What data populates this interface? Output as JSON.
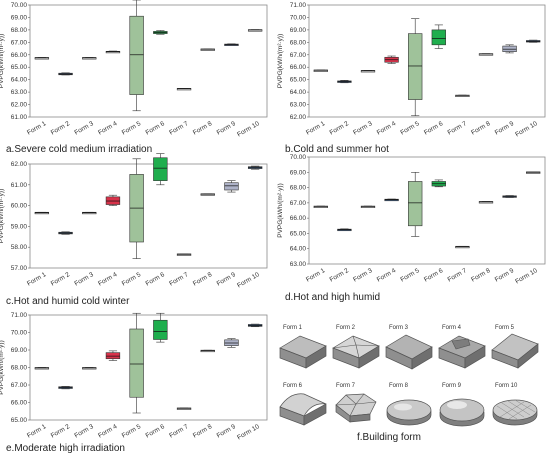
{
  "chart_data": [
    {
      "type": "box",
      "caption": "a.Severe cold medium irradiation",
      "ylabel": "PVPG(kWh/(m²·y))",
      "categories": [
        "Form 1",
        "Form 2",
        "Form 3",
        "Form 4",
        "Form 5",
        "Form 6",
        "Form 7",
        "Form 8",
        "Form 9",
        "Form 10"
      ],
      "ylim": [
        61.0,
        70.0
      ],
      "yticks": [
        "61.00",
        "62.00",
        "63.00",
        "64.00",
        "65.00",
        "66.00",
        "67.00",
        "68.00",
        "69.00",
        "70.00"
      ],
      "boxes": [
        {
          "min": 65.74,
          "q1": 65.74,
          "median": 65.76,
          "q3": 65.78,
          "max": 65.78,
          "color": "#cfcfcf"
        },
        {
          "min": 64.38,
          "q1": 64.4,
          "median": 64.45,
          "q3": 64.52,
          "max": 64.55,
          "color": "#3e5f86"
        },
        {
          "min": 65.74,
          "q1": 65.74,
          "median": 65.76,
          "q3": 65.78,
          "max": 65.78,
          "color": "#cfcfcf"
        },
        {
          "min": 66.22,
          "q1": 66.22,
          "median": 66.25,
          "q3": 66.28,
          "max": 66.3,
          "color": "#cfcfcf"
        },
        {
          "min": 61.5,
          "q1": 62.8,
          "median": 66.0,
          "q3": 69.1,
          "max": 70.4,
          "color": "#9fc29a"
        },
        {
          "min": 67.65,
          "q1": 67.7,
          "median": 67.8,
          "q3": 67.88,
          "max": 67.95,
          "color": "#1fae4e"
        },
        {
          "min": 63.26,
          "q1": 63.26,
          "median": 63.28,
          "q3": 63.3,
          "max": 63.3,
          "color": "#cfcfcf"
        },
        {
          "min": 66.43,
          "q1": 66.43,
          "median": 66.45,
          "q3": 66.47,
          "max": 66.47,
          "color": "#cfcfcf"
        },
        {
          "min": 66.78,
          "q1": 66.8,
          "median": 66.82,
          "q3": 66.86,
          "max": 66.88,
          "color": "#5d6f8f"
        },
        {
          "min": 67.97,
          "q1": 67.97,
          "median": 68.0,
          "q3": 68.02,
          "max": 68.02,
          "color": "#cfcfcf"
        }
      ]
    },
    {
      "type": "box",
      "caption": "b.Cold and summer hot",
      "ylabel": "PVPG(kWh/(m²·y))",
      "categories": [
        "Form 1",
        "Form 2",
        "Form 3",
        "Form 4",
        "Form 5",
        "Form 6",
        "Form 7",
        "Form 8",
        "Form 9",
        "Form 10"
      ],
      "ylim": [
        62.0,
        71.0
      ],
      "yticks": [
        "62.00",
        "63.00",
        "64.00",
        "65.00",
        "66.00",
        "67.00",
        "68.00",
        "69.00",
        "70.00",
        "71.00"
      ],
      "boxes": [
        {
          "min": 65.74,
          "q1": 65.74,
          "median": 65.76,
          "q3": 65.78,
          "max": 65.78,
          "color": "#cfcfcf"
        },
        {
          "min": 64.75,
          "q1": 64.78,
          "median": 64.85,
          "q3": 64.9,
          "max": 64.95,
          "color": "#3e5f86"
        },
        {
          "min": 65.7,
          "q1": 65.7,
          "median": 65.72,
          "q3": 65.74,
          "max": 65.74,
          "color": "#cfcfcf"
        },
        {
          "min": 66.3,
          "q1": 66.4,
          "median": 66.6,
          "q3": 66.8,
          "max": 66.9,
          "color": "#d8324a"
        },
        {
          "min": 62.1,
          "q1": 63.4,
          "median": 66.1,
          "q3": 68.7,
          "max": 69.9,
          "color": "#9fc29a"
        },
        {
          "min": 67.5,
          "q1": 67.8,
          "median": 68.3,
          "q3": 69.0,
          "max": 69.4,
          "color": "#1fae4e"
        },
        {
          "min": 63.72,
          "q1": 63.72,
          "median": 63.74,
          "q3": 63.76,
          "max": 63.76,
          "color": "#cfcfcf"
        },
        {
          "min": 67.05,
          "q1": 67.05,
          "median": 67.07,
          "q3": 67.09,
          "max": 67.09,
          "color": "#cfcfcf"
        },
        {
          "min": 67.15,
          "q1": 67.25,
          "median": 67.45,
          "q3": 67.7,
          "max": 67.8,
          "color": "#aeb3c8"
        },
        {
          "min": 68.0,
          "q1": 68.03,
          "median": 68.08,
          "q3": 68.15,
          "max": 68.18,
          "color": "#3e5f86"
        }
      ]
    },
    {
      "type": "box",
      "caption": "c.Hot and humid cold winter",
      "ylabel": "PVPG(kWh/(m²·y))",
      "categories": [
        "Form 1",
        "Form 2",
        "Form 3",
        "Form 4",
        "Form 5",
        "Form 6",
        "Form 7",
        "Form 8",
        "Form 9",
        "Form 10"
      ],
      "ylim": [
        57.0,
        62.0
      ],
      "yticks": [
        "57.00",
        "58.00",
        "59.00",
        "60.00",
        "61.00",
        "62.00"
      ],
      "boxes": [
        {
          "min": 59.64,
          "q1": 59.64,
          "median": 59.66,
          "q3": 59.68,
          "max": 59.68,
          "color": "#cfcfcf"
        },
        {
          "min": 58.62,
          "q1": 58.64,
          "median": 58.68,
          "q3": 58.72,
          "max": 58.74,
          "color": "#3e5f86"
        },
        {
          "min": 59.64,
          "q1": 59.64,
          "median": 59.66,
          "q3": 59.68,
          "max": 59.68,
          "color": "#cfcfcf"
        },
        {
          "min": 60.0,
          "q1": 60.05,
          "median": 60.22,
          "q3": 60.42,
          "max": 60.5,
          "color": "#d8324a"
        },
        {
          "min": 57.45,
          "q1": 58.25,
          "median": 59.88,
          "q3": 61.5,
          "max": 62.25,
          "color": "#9fc29a"
        },
        {
          "min": 61.0,
          "q1": 61.2,
          "median": 61.8,
          "q3": 62.3,
          "max": 62.5,
          "color": "#1fae4e"
        },
        {
          "min": 57.64,
          "q1": 57.64,
          "median": 57.66,
          "q3": 57.68,
          "max": 57.68,
          "color": "#cfcfcf"
        },
        {
          "min": 60.53,
          "q1": 60.53,
          "median": 60.55,
          "q3": 60.57,
          "max": 60.57,
          "color": "#cfcfcf"
        },
        {
          "min": 60.65,
          "q1": 60.75,
          "median": 60.95,
          "q3": 61.1,
          "max": 61.2,
          "color": "#aeb3c8"
        },
        {
          "min": 61.75,
          "q1": 61.78,
          "median": 61.82,
          "q3": 61.87,
          "max": 61.9,
          "color": "#3e5f86"
        }
      ]
    },
    {
      "type": "box",
      "caption": "d.Hot and high humid",
      "ylabel": "PVPG(kWh/(m²·y))",
      "categories": [
        "Form 1",
        "Form 2",
        "Form 3",
        "Form 4",
        "Form 5",
        "Form 6",
        "Form 7",
        "Form 8",
        "Form 9",
        "Form 10"
      ],
      "ylim": [
        63.0,
        70.0
      ],
      "yticks": [
        "63.00",
        "64.00",
        "65.00",
        "66.00",
        "67.00",
        "68.00",
        "69.00",
        "70.00"
      ],
      "boxes": [
        {
          "min": 66.75,
          "q1": 66.75,
          "median": 66.77,
          "q3": 66.79,
          "max": 66.79,
          "color": "#cfcfcf"
        },
        {
          "min": 65.2,
          "q1": 65.22,
          "median": 65.25,
          "q3": 65.28,
          "max": 65.3,
          "color": "#3e5f86"
        },
        {
          "min": 66.75,
          "q1": 66.75,
          "median": 66.77,
          "q3": 66.79,
          "max": 66.79,
          "color": "#cfcfcf"
        },
        {
          "min": 67.18,
          "q1": 67.19,
          "median": 67.21,
          "q3": 67.24,
          "max": 67.25,
          "color": "#3e5f86"
        },
        {
          "min": 64.8,
          "q1": 65.5,
          "median": 67.0,
          "q3": 68.4,
          "max": 69.0,
          "color": "#9fc29a"
        },
        {
          "min": 68.05,
          "q1": 68.1,
          "median": 68.25,
          "q3": 68.4,
          "max": 68.5,
          "color": "#1fae4e"
        },
        {
          "min": 64.12,
          "q1": 64.12,
          "median": 64.14,
          "q3": 64.16,
          "max": 64.16,
          "color": "#cfcfcf"
        },
        {
          "min": 67.05,
          "q1": 67.05,
          "median": 67.07,
          "q3": 67.09,
          "max": 67.09,
          "color": "#cfcfcf"
        },
        {
          "min": 67.35,
          "q1": 67.38,
          "median": 67.42,
          "q3": 67.46,
          "max": 67.48,
          "color": "#5d6f8f"
        },
        {
          "min": 68.97,
          "q1": 68.97,
          "median": 69.0,
          "q3": 69.03,
          "max": 69.03,
          "color": "#cfcfcf"
        }
      ]
    },
    {
      "type": "box",
      "caption": "e.Moderate high irradiation",
      "ylabel": "PVPG(kWh/(m²·y))",
      "categories": [
        "Form 1",
        "Form 2",
        "Form 3",
        "Form 4",
        "Form 5",
        "Form 6",
        "Form 7",
        "Form 8",
        "Form 9",
        "Form 10"
      ],
      "ylim": [
        65.0,
        71.0
      ],
      "yticks": [
        "65.00",
        "66.00",
        "67.00",
        "68.00",
        "69.00",
        "70.00",
        "71.00"
      ],
      "boxes": [
        {
          "min": 67.96,
          "q1": 67.96,
          "median": 67.98,
          "q3": 68.0,
          "max": 68.0,
          "color": "#cfcfcf"
        },
        {
          "min": 66.78,
          "q1": 66.8,
          "median": 66.85,
          "q3": 66.9,
          "max": 66.92,
          "color": "#3e5f86"
        },
        {
          "min": 67.96,
          "q1": 67.96,
          "median": 67.98,
          "q3": 68.0,
          "max": 68.0,
          "color": "#cfcfcf"
        },
        {
          "min": 68.4,
          "q1": 68.5,
          "median": 68.65,
          "q3": 68.85,
          "max": 68.95,
          "color": "#d8324a"
        },
        {
          "min": 65.4,
          "q1": 66.3,
          "median": 68.2,
          "q3": 70.2,
          "max": 71.1,
          "color": "#9fc29a"
        },
        {
          "min": 69.45,
          "q1": 69.6,
          "median": 70.05,
          "q3": 70.7,
          "max": 71.1,
          "color": "#1fae4e"
        },
        {
          "min": 65.65,
          "q1": 65.65,
          "median": 65.67,
          "q3": 65.69,
          "max": 65.69,
          "color": "#cfcfcf"
        },
        {
          "min": 68.95,
          "q1": 68.95,
          "median": 68.97,
          "q3": 68.99,
          "max": 68.99,
          "color": "#cfcfcf"
        },
        {
          "min": 69.15,
          "q1": 69.25,
          "median": 69.4,
          "q3": 69.58,
          "max": 69.65,
          "color": "#aeb3c8"
        },
        {
          "min": 70.33,
          "q1": 70.35,
          "median": 70.4,
          "q3": 70.46,
          "max": 70.48,
          "color": "#3e5f86"
        }
      ]
    }
  ],
  "building_form": {
    "caption": "f.Building form",
    "forms": [
      "Form 1",
      "Form 2",
      "Form 3",
      "Form 4",
      "Form 5",
      "Form 6",
      "Form 7",
      "Form 8",
      "Form 9",
      "Form 10"
    ]
  }
}
